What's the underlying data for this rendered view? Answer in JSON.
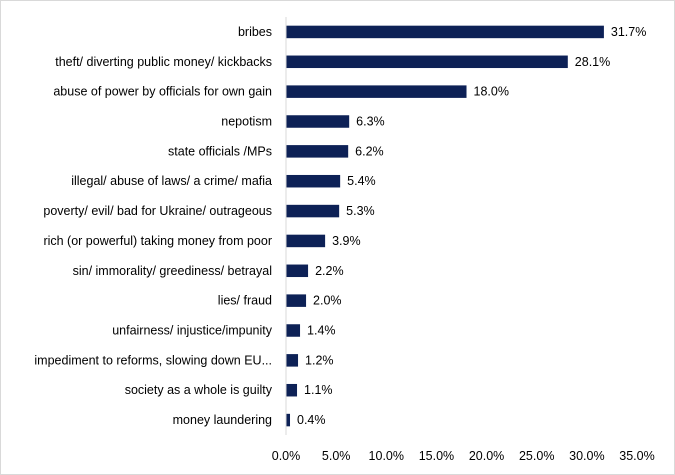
{
  "chart_data": {
    "type": "bar",
    "orientation": "horizontal",
    "categories": [
      "bribes",
      "theft/ diverting public money/ kickbacks",
      "abuse of power by officials for own gain",
      "nepotism",
      "state officials /MPs",
      "illegal/ abuse of laws/ a crime/ mafia",
      "poverty/ evil/ bad for Ukraine/ outrageous",
      "rich (or powerful) taking money from poor",
      "sin/ immorality/ greediness/ betrayal",
      "lies/ fraud",
      "unfairness/ injustice/impunity",
      "impediment to reforms, slowing down EU...",
      "society as a whole is guilty",
      "money laundering"
    ],
    "values": [
      31.7,
      28.1,
      18.0,
      6.3,
      6.2,
      5.4,
      5.3,
      3.9,
      2.2,
      2.0,
      1.4,
      1.2,
      1.1,
      0.4
    ],
    "value_labels": [
      "31.7%",
      "28.1%",
      "18.0%",
      "6.3%",
      "6.2%",
      "5.4%",
      "5.3%",
      "3.9%",
      "2.2%",
      "2.0%",
      "1.4%",
      "1.2%",
      "1.1%",
      "0.4%"
    ],
    "xlim": [
      0,
      35
    ],
    "xticks": [
      0,
      5,
      10,
      15,
      20,
      25,
      30,
      35
    ],
    "xtick_labels": [
      "0.0%",
      "5.0%",
      "10.0%",
      "15.0%",
      "20.0%",
      "25.0%",
      "30.0%",
      "35.0%"
    ],
    "title": "",
    "xlabel": "",
    "ylabel": "",
    "grid": false,
    "legend": "none",
    "bar_color": "#0d2156"
  }
}
